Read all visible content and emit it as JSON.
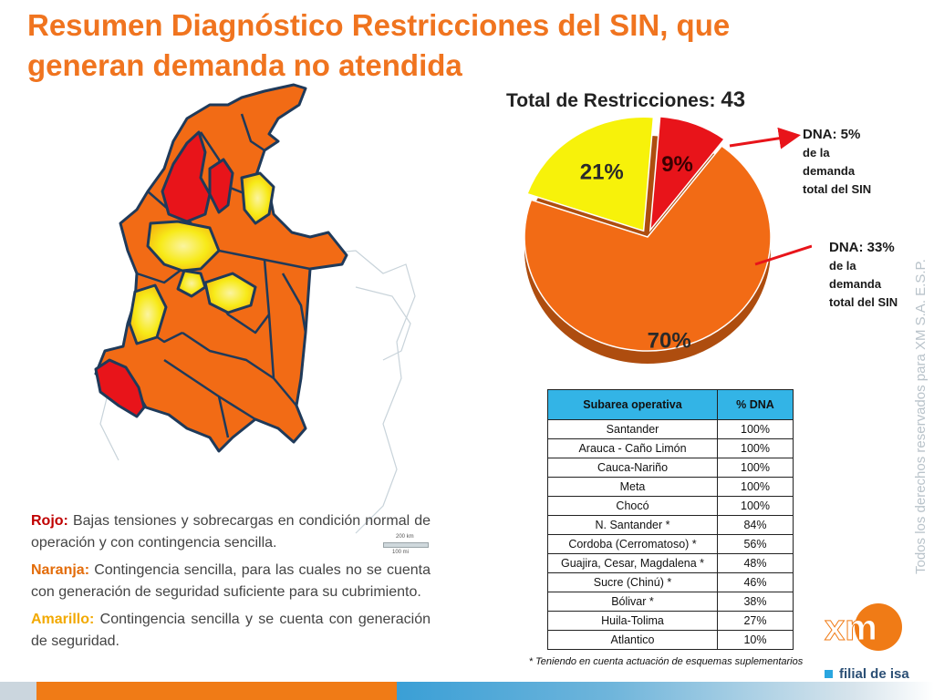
{
  "title": "Resumen Diagnóstico Restricciones del SIN, que generan demanda no atendida",
  "map": {
    "scale_km": "200 km",
    "scale_mi": "100 mi",
    "colors": {
      "red": "#e8141a",
      "orange": "#f26b15",
      "yellow": "#f7ea18",
      "border": "#1f3a5a"
    }
  },
  "chart_data": {
    "type": "pie",
    "title_label": "Total de Restricciones:",
    "title_value": "43",
    "slices": [
      {
        "label": "70%",
        "value": 70,
        "color": "#f26b15"
      },
      {
        "label": "21%",
        "value": 21,
        "color": "#f7f20a"
      },
      {
        "label": "9%",
        "value": 9,
        "color": "#e8141a"
      }
    ],
    "annotations": [
      {
        "head": "DNA: 5%",
        "lines": [
          "de la",
          "demanda",
          "total del SIN"
        ],
        "points_to": "9%"
      },
      {
        "head": "DNA: 33%",
        "lines": [
          "de la",
          "demanda",
          "total del SIN"
        ],
        "points_to": "70%"
      }
    ]
  },
  "legend": {
    "red": {
      "key": "Rojo",
      "sep": ":",
      "text": "Bajas tensiones y  sobrecargas en condición normal de operación y con contingencia sencilla."
    },
    "orange": {
      "key": "Naranja",
      "sep": ":",
      "text": "Contingencia sencilla, para las cuales no se cuenta con generación de seguridad  suficiente para su cubrimiento."
    },
    "yellow": {
      "key": "Amarillo",
      "sep": ":",
      "text": "Contingencia sencilla y se cuenta con generación de seguridad."
    }
  },
  "table": {
    "headers": [
      "Subarea operativa",
      "% DNA"
    ],
    "rows": [
      [
        "Santander",
        "100%"
      ],
      [
        "Arauca - Caño Limón",
        "100%"
      ],
      [
        "Cauca-Nariño",
        "100%"
      ],
      [
        "Meta",
        "100%"
      ],
      [
        "Chocó",
        "100%"
      ],
      [
        "N. Santander *",
        "84%"
      ],
      [
        "Cordoba (Cerromatoso) *",
        "56%"
      ],
      [
        "Guajira, Cesar, Magdalena *",
        "48%"
      ],
      [
        "Sucre (Chinú) *",
        "46%"
      ],
      [
        "Bólivar *",
        "38%"
      ],
      [
        "Huila-Tolima",
        "27%"
      ],
      [
        "Atlantico",
        "10%"
      ]
    ],
    "note": "* Teniendo en cuenta actuación de esquemas suplementarios"
  },
  "watermark": "Todos los derechos reservados para XM S.A. E.S.P.",
  "logo": {
    "text": "xm",
    "tagline": "filial de isa"
  }
}
